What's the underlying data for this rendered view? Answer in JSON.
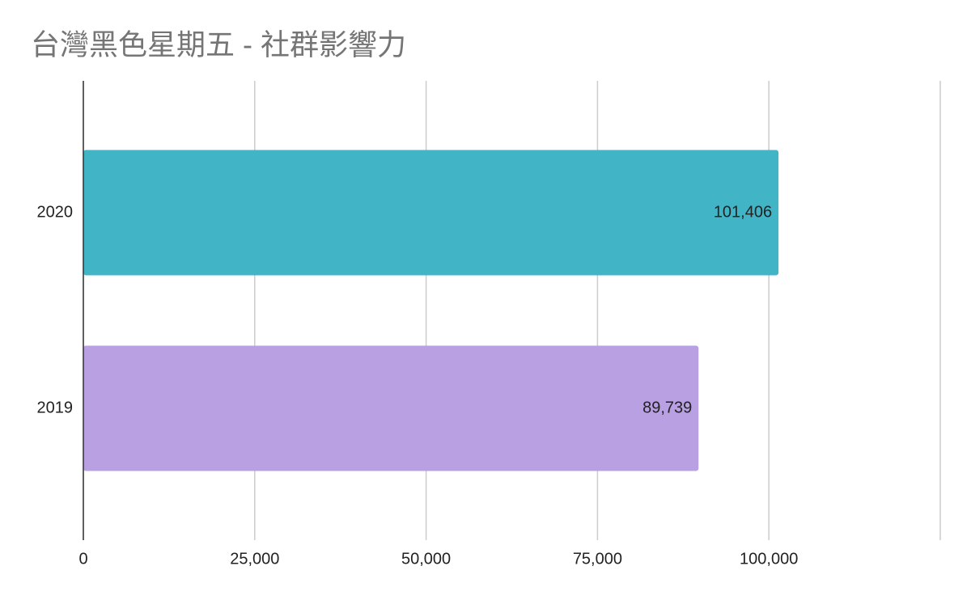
{
  "chart_data": {
    "type": "hbar",
    "title": "台灣黑色星期五 - 社群影響力",
    "categories": [
      "2020",
      "2019"
    ],
    "values": [
      101406,
      89739
    ],
    "value_labels": [
      "101,406",
      "89,739"
    ],
    "colors": [
      "#41b4c6",
      "#b9a0e2"
    ],
    "xlim": [
      0,
      125000
    ],
    "xticks": [
      0,
      {
        "value": 25000,
        "label": "25,000"
      },
      {
        "value": 50000,
        "label": "50,000"
      },
      {
        "value": 75000,
        "label": "75,000"
      },
      {
        "value": 100000,
        "label": "100,000"
      }
    ],
    "grid": true
  }
}
